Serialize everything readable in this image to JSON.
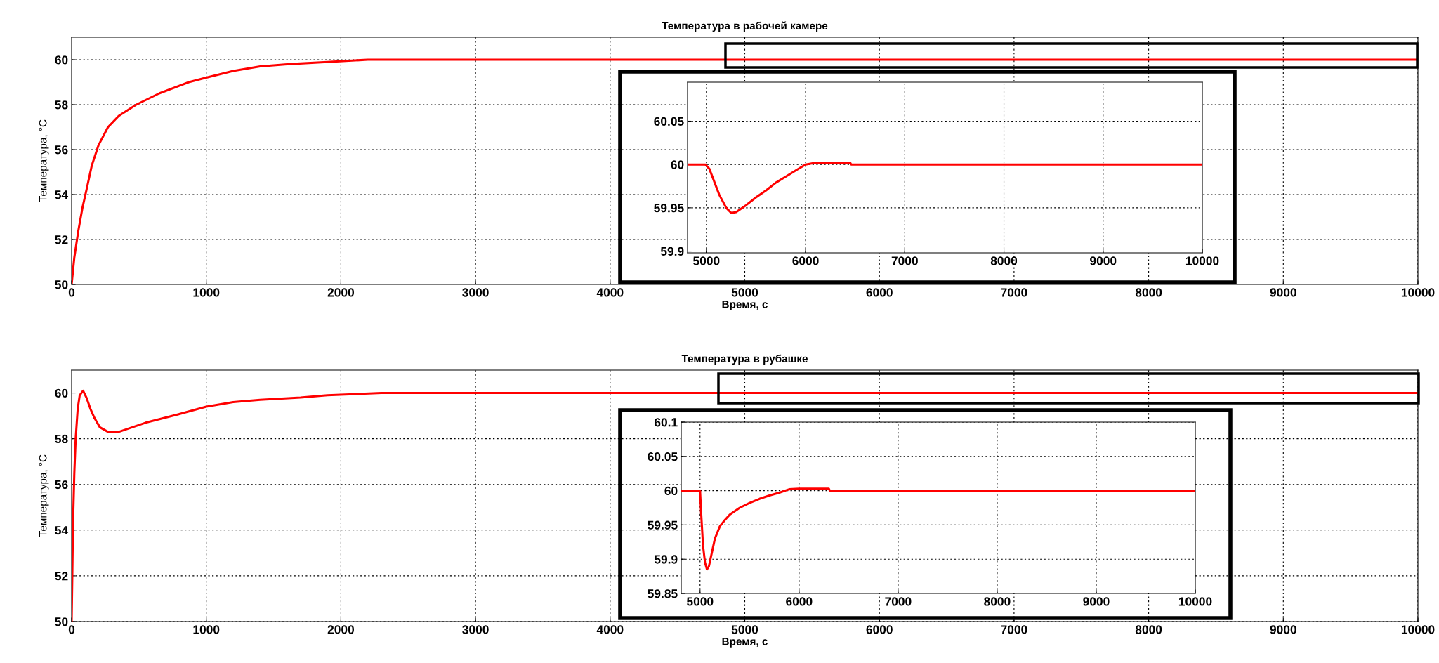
{
  "chart_data": [
    {
      "type": "line",
      "title": "Температура в рабочей камере",
      "xlabel": "Время, с",
      "ylabel": "Температура, °С",
      "xlim": [
        0,
        10000
      ],
      "ylim": [
        50,
        61
      ],
      "xticks": [
        0,
        1000,
        2000,
        3000,
        4000,
        5000,
        6000,
        7000,
        8000,
        9000,
        10000
      ],
      "yticks": [
        50,
        52,
        54,
        56,
        58,
        60
      ],
      "grid": true,
      "marker": "none",
      "line_style": "solid",
      "series": [
        {
          "color": "#ff0000",
          "x": [
            0,
            20,
            50,
            80,
            110,
            150,
            200,
            270,
            350,
            480,
            650,
            870,
            1000,
            1200,
            1400,
            1600,
            1900,
            2200,
            2500,
            3000,
            4000,
            5000,
            6000,
            7000,
            8000,
            9000,
            10000
          ],
          "values": [
            50,
            51.2,
            52.4,
            53.4,
            54.2,
            55.3,
            56.2,
            57,
            57.5,
            58,
            58.5,
            59,
            59.2,
            59.5,
            59.7,
            59.8,
            59.9,
            60,
            60,
            60,
            60,
            60,
            60,
            60,
            60,
            60,
            60
          ]
        }
      ]
    },
    {
      "type": "line",
      "xlim": [
        4810,
        10000
      ],
      "ylim": [
        59.898,
        60.095
      ],
      "xticks": [
        5000,
        6000,
        7000,
        8000,
        9000,
        10000
      ],
      "yticks": [
        59.9,
        59.95,
        60,
        60.05
      ],
      "grid": true,
      "marker": "none",
      "line_style": "solid",
      "series": [
        {
          "color": "#ff0000",
          "x": [
            4810,
            4990,
            5030,
            5080,
            5130,
            5200,
            5250,
            5300,
            5400,
            5500,
            5600,
            5700,
            5800,
            5900,
            6000,
            6100,
            6200,
            6450,
            6460,
            7000,
            8000,
            9000,
            10000
          ],
          "values": [
            60,
            60,
            59.995,
            59.98,
            59.965,
            59.95,
            59.944,
            59.945,
            59.953,
            59.962,
            59.97,
            59.979,
            59.986,
            59.993,
            60,
            60.002,
            60.002,
            60.002,
            60,
            60,
            60,
            60,
            60
          ]
        }
      ]
    },
    {
      "type": "line",
      "title": "Температура в рубашке",
      "xlabel": "Время, с",
      "ylabel": "Температура, °С",
      "xlim": [
        0,
        10000
      ],
      "ylim": [
        50,
        61
      ],
      "xticks": [
        0,
        1000,
        2000,
        3000,
        4000,
        5000,
        6000,
        7000,
        8000,
        9000,
        10000
      ],
      "yticks": [
        50,
        52,
        54,
        56,
        58,
        60
      ],
      "grid": true,
      "marker": "none",
      "line_style": "solid",
      "series": [
        {
          "color": "#ff0000",
          "x": [
            0,
            5,
            10,
            20,
            30,
            45,
            60,
            85,
            110,
            140,
            170,
            210,
            270,
            350,
            450,
            550,
            750,
            1000,
            1200,
            1400,
            1700,
            1900,
            2300,
            3000,
            4000,
            5000,
            6000,
            7000,
            8000,
            9000,
            10000
          ],
          "values": [
            50,
            52,
            54.2,
            56.5,
            58,
            59.3,
            59.9,
            60.1,
            59.8,
            59.3,
            58.9,
            58.5,
            58.3,
            58.3,
            58.5,
            58.7,
            59,
            59.4,
            59.6,
            59.7,
            59.8,
            59.9,
            60,
            60,
            60,
            60,
            60,
            60,
            60,
            60,
            60
          ]
        }
      ]
    },
    {
      "type": "line",
      "xlim": [
        4810,
        10000
      ],
      "ylim": [
        59.85,
        60.1
      ],
      "xticks": [
        5000,
        6000,
        7000,
        8000,
        9000,
        10000
      ],
      "yticks": [
        59.85,
        59.9,
        59.95,
        60,
        60.05,
        60.1
      ],
      "grid": true,
      "marker": "none",
      "line_style": "solid",
      "series": [
        {
          "color": "#ff0000",
          "x": [
            4810,
            5000,
            5010,
            5030,
            5050,
            5070,
            5090,
            5120,
            5150,
            5200,
            5250,
            5300,
            5400,
            5500,
            5600,
            5700,
            5800,
            5900,
            6000,
            6200,
            6300,
            6310,
            7000,
            8000,
            9000,
            10000
          ],
          "values": [
            60,
            60,
            59.97,
            59.92,
            59.895,
            59.885,
            59.89,
            59.91,
            59.93,
            59.948,
            59.957,
            59.965,
            59.975,
            59.982,
            59.988,
            59.993,
            59.997,
            60.002,
            60.003,
            60.003,
            60.003,
            60,
            60,
            60,
            60,
            60
          ]
        }
      ]
    }
  ]
}
